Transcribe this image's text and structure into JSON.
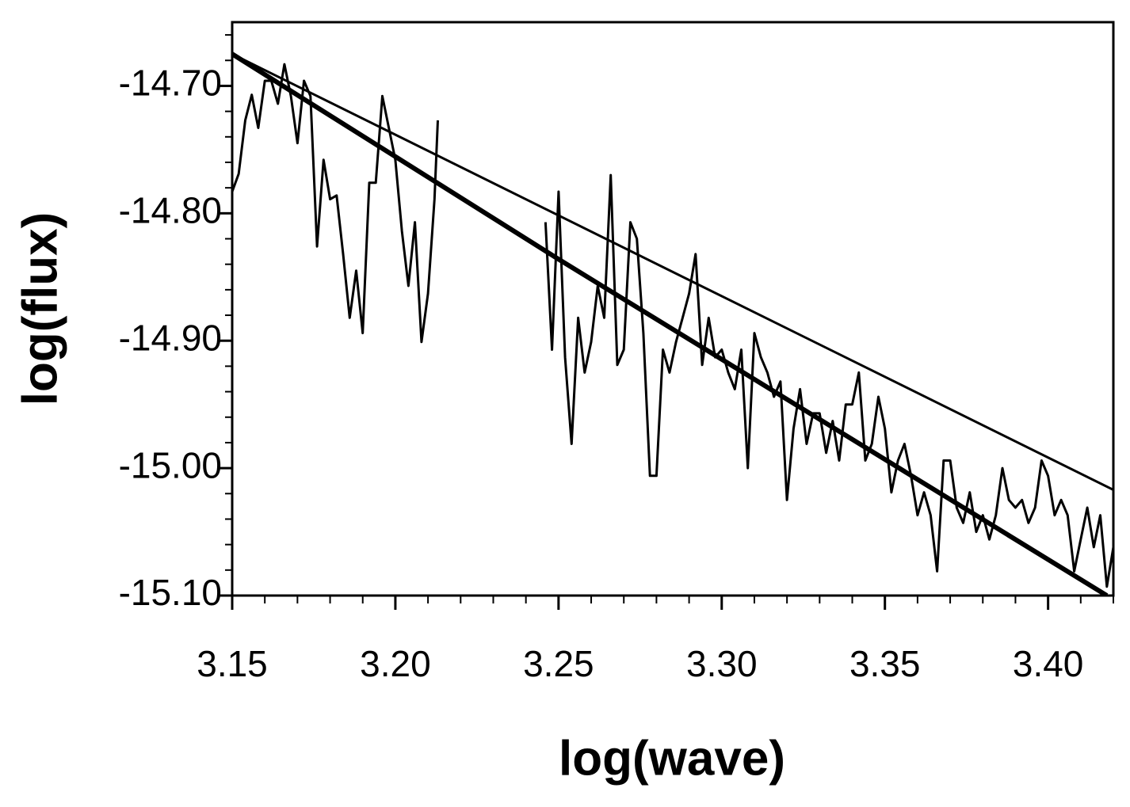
{
  "chart_data": {
    "type": "line",
    "xlabel": "log(wave)",
    "ylabel": "log(flux)",
    "xlim": [
      3.15,
      3.42
    ],
    "ylim": [
      -15.1,
      -14.65
    ],
    "xticks": [
      3.15,
      {
        "value": 3.2,
        "label": "3.20"
      },
      3.25,
      {
        "value": 3.3,
        "label": "3.30"
      },
      3.35,
      {
        "value": 3.4,
        "label": "3.40"
      }
    ],
    "yticks": [
      {
        "value": -14.7,
        "label": "-14.70"
      },
      {
        "value": -14.8,
        "label": "-14.80"
      },
      {
        "value": -14.9,
        "label": "-14.90"
      },
      {
        "value": -15.0,
        "label": "-15.00"
      },
      {
        "value": -15.1,
        "label": "-15.10"
      }
    ],
    "xminorticks": [
      3.16,
      3.17,
      3.18,
      3.19,
      3.21,
      3.22,
      3.23,
      3.24,
      3.26,
      3.27,
      3.28,
      3.29,
      3.31,
      3.32,
      3.33,
      3.34,
      3.36,
      3.37,
      3.38,
      3.39,
      3.41,
      3.42
    ],
    "yminorticks": [
      -14.66,
      -14.68,
      -14.72,
      -14.74,
      -14.76,
      -14.78,
      -14.82,
      -14.84,
      -14.86,
      -14.88,
      -14.92,
      -14.94,
      -14.96,
      -14.98,
      -15.02,
      -15.04,
      -15.06,
      -15.08
    ],
    "grid": false,
    "series": [
      {
        "color": "#000000",
        "width": 3,
        "x": [
          3.15,
          3.152,
          3.154,
          3.156,
          3.158,
          3.16,
          3.162,
          3.164,
          3.166,
          3.168,
          3.17,
          3.172,
          3.174,
          3.176,
          3.178,
          3.18,
          3.182,
          3.184,
          3.186,
          3.188,
          3.19,
          3.192,
          3.194,
          3.196,
          3.198,
          3.2,
          3.202,
          3.204,
          3.206,
          3.208,
          3.21,
          3.212,
          3.213,
          3.23,
          3.246,
          3.248,
          3.25,
          3.252,
          3.254,
          3.256,
          3.258,
          3.26,
          3.262,
          3.264,
          3.266,
          3.268,
          3.27,
          3.272,
          3.274,
          3.276,
          3.278,
          3.28,
          3.282,
          3.284,
          3.286,
          3.288,
          3.29,
          3.292,
          3.294,
          3.296,
          3.298,
          3.3,
          3.302,
          3.304,
          3.306,
          3.308,
          3.31,
          3.312,
          3.314,
          3.316,
          3.318,
          3.32,
          3.322,
          3.324,
          3.326,
          3.328,
          3.33,
          3.332,
          3.334,
          3.336,
          3.338,
          3.34,
          3.342,
          3.344,
          3.346,
          3.348,
          3.35,
          3.352,
          3.354,
          3.356,
          3.358,
          3.36,
          3.362,
          3.364,
          3.366,
          3.368,
          3.37,
          3.372,
          3.374,
          3.376,
          3.378,
          3.38,
          3.382,
          3.384,
          3.386,
          3.388,
          3.39,
          3.392,
          3.394,
          3.396,
          3.398,
          3.4,
          3.402,
          3.404,
          3.406,
          3.408,
          3.41,
          3.412,
          3.414,
          3.416,
          3.418,
          3.42
        ],
        "values": [
          -14.783,
          -14.769,
          -14.727,
          -14.707,
          -14.733,
          -14.696,
          -14.696,
          -14.714,
          -14.683,
          -14.708,
          -14.745,
          -14.696,
          -14.708,
          -14.826,
          -14.758,
          -14.789,
          -14.786,
          -14.832,
          -14.882,
          -14.845,
          -14.894,
          -14.776,
          -14.776,
          -14.708,
          -14.733,
          -14.758,
          -14.814,
          -14.857,
          -14.807,
          -14.901,
          -14.863,
          -14.789,
          -14.727,
          null,
          -14.807,
          -14.907,
          -14.783,
          -14.913,
          -14.981,
          -14.882,
          -14.925,
          -14.901,
          -14.857,
          -14.882,
          -14.77,
          -14.919,
          -14.907,
          -14.807,
          -14.82,
          -14.894,
          -15.006,
          -15.006,
          -14.907,
          -14.925,
          -14.901,
          -14.882,
          -14.863,
          -14.832,
          -14.919,
          -14.882,
          -14.913,
          -14.907,
          -14.925,
          -14.938,
          -14.907,
          -15.0,
          -14.894,
          -14.913,
          -14.925,
          -14.944,
          -14.932,
          -15.025,
          -14.969,
          -14.938,
          -14.981,
          -14.957,
          -14.957,
          -14.988,
          -14.963,
          -14.994,
          -14.95,
          -14.95,
          -14.925,
          -14.994,
          -14.981,
          -14.944,
          -14.969,
          -15.019,
          -14.994,
          -14.981,
          -15.006,
          -15.037,
          -15.019,
          -15.037,
          -15.081,
          -14.994,
          -14.994,
          -15.031,
          -15.043,
          -15.019,
          -15.05,
          -15.037,
          -15.056,
          -15.037,
          -15.0,
          -15.025,
          -15.031,
          -15.025,
          -15.043,
          -15.031,
          -14.994,
          -15.006,
          -15.037,
          -15.025,
          -15.037,
          -15.081,
          -15.056,
          -15.031,
          -15.062,
          -15.037,
          -15.093,
          -15.062
        ]
      },
      {
        "color": "#000000",
        "width": 3,
        "x": [
          3.15,
          3.42
        ],
        "values": [
          -14.675,
          -15.017
        ]
      },
      {
        "color": "#000000",
        "width": 6,
        "x": [
          3.15,
          3.25,
          3.418
        ],
        "values": [
          -14.675,
          -14.836,
          -15.1
        ]
      }
    ]
  }
}
